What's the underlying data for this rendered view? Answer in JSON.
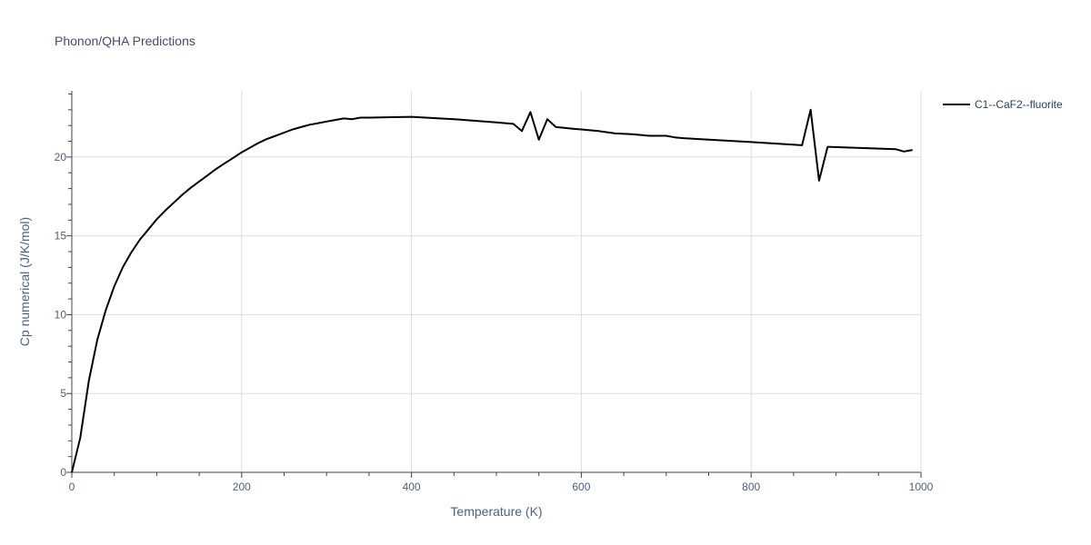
{
  "chart_data": {
    "type": "line",
    "title": "Phonon/QHA Predictions",
    "xlabel": "Temperature (K)",
    "ylabel": "Cp numerical (J/K/mol)",
    "xlim": [
      0,
      1000
    ],
    "ylim": [
      0,
      24.2
    ],
    "xticks": [
      0,
      200,
      400,
      600,
      800,
      1000
    ],
    "yticks": [
      0,
      5,
      10,
      15,
      20
    ],
    "xtick_labels": [
      "0",
      "200",
      "400",
      "600",
      "800",
      "1000"
    ],
    "ytick_labels": [
      "0",
      "5",
      "10",
      "15",
      "20"
    ],
    "grid": true,
    "legend_position": "top-right",
    "series": [
      {
        "name": "C1--CaF2--fluorite",
        "color": "#000000",
        "x": [
          0,
          10,
          20,
          30,
          40,
          50,
          60,
          70,
          80,
          90,
          100,
          110,
          120,
          130,
          140,
          150,
          160,
          170,
          180,
          190,
          200,
          210,
          220,
          230,
          240,
          250,
          260,
          270,
          280,
          290,
          300,
          310,
          320,
          330,
          340,
          350,
          400,
          450,
          500,
          520,
          530,
          540,
          550,
          560,
          570,
          580,
          590,
          600,
          620,
          640,
          660,
          680,
          690,
          700,
          710,
          720,
          800,
          860,
          870,
          880,
          890,
          970,
          980,
          990
        ],
        "y": [
          0,
          2.2,
          5.8,
          8.4,
          10.3,
          11.8,
          13.0,
          13.95,
          14.75,
          15.4,
          16.05,
          16.6,
          17.1,
          17.6,
          18.05,
          18.45,
          18.85,
          19.25,
          19.6,
          19.95,
          20.3,
          20.6,
          20.9,
          21.15,
          21.35,
          21.55,
          21.75,
          21.9,
          22.05,
          22.15,
          22.25,
          22.35,
          22.45,
          22.4,
          22.5,
          22.5,
          22.55,
          22.4,
          22.2,
          22.1,
          21.65,
          22.85,
          21.1,
          22.4,
          21.9,
          21.85,
          21.8,
          21.75,
          21.65,
          21.5,
          21.45,
          21.35,
          21.35,
          21.35,
          21.25,
          21.2,
          20.95,
          20.75,
          23.0,
          18.5,
          20.65,
          20.5,
          20.35,
          20.45
        ]
      }
    ]
  }
}
